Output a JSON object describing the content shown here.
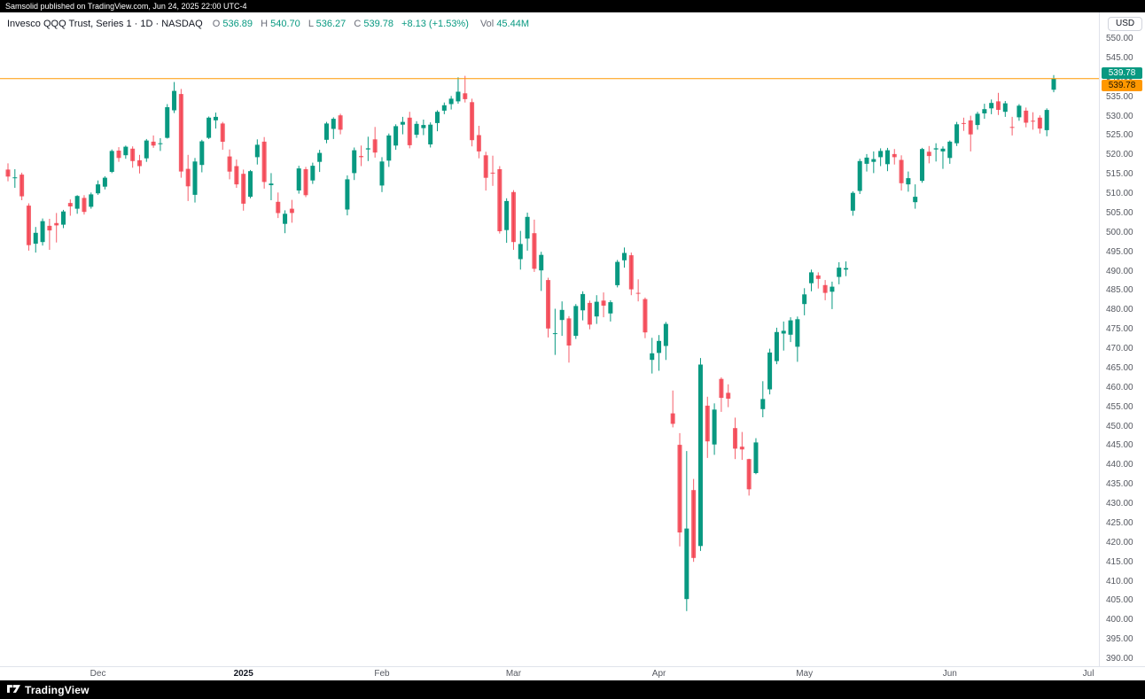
{
  "topbar": {
    "text": "Samsolid published on TradingView.com, Jun 24, 2025 22:00 UTC-4"
  },
  "legend": {
    "title": "Invesco QQQ Trust, Series 1 · 1D · NASDAQ",
    "ohlc": [
      {
        "label": "O",
        "value": "536.89"
      },
      {
        "label": "H",
        "value": "540.70"
      },
      {
        "label": "L",
        "value": "536.27"
      },
      {
        "label": "C",
        "value": "539.78"
      }
    ],
    "change": "+8.13 (+1.53%)",
    "vol_label": "Vol",
    "vol_value": "45.44M"
  },
  "price_scale": {
    "currency_button": "USD",
    "last_price_label": "539.78",
    "price_line_label": "539.78"
  },
  "footer": {
    "brand": "TradingView"
  },
  "colors": {
    "up": "#089981",
    "down": "#f23645",
    "price_line": "#ff9800",
    "last_badge": "#089981",
    "line_badge": "#ff9800",
    "axis_text": "#555860",
    "background": "#ffffff"
  },
  "chart_data": {
    "type": "candlestick",
    "title": "Invesco QQQ Trust, Series 1",
    "symbol": "QQQ",
    "exchange": "NASDAQ",
    "interval": "1D",
    "currency": "USD",
    "last_bar": {
      "open": 536.89,
      "high": 540.7,
      "low": 536.27,
      "close": 539.78,
      "change": 8.13,
      "change_pct": 1.53,
      "volume": "45.44M"
    },
    "price_line": 539.78,
    "y_axis": {
      "min": 390,
      "max": 550,
      "step": 5,
      "decimals": 2
    },
    "x_labels": [
      {
        "text": "Dec",
        "index": 13,
        "bold": false
      },
      {
        "text": "2025",
        "index": 34,
        "bold": true
      },
      {
        "text": "Feb",
        "index": 54,
        "bold": false
      },
      {
        "text": "Mar",
        "index": 73,
        "bold": false
      },
      {
        "text": "Apr",
        "index": 94,
        "bold": false
      },
      {
        "text": "May",
        "index": 115,
        "bold": false
      },
      {
        "text": "Jun",
        "index": 136,
        "bold": false
      },
      {
        "text": "Jul",
        "index": 156,
        "bold": false
      }
    ],
    "candles": [
      [
        "2024-11-12",
        516.3,
        517.9,
        513.3,
        514.5
      ],
      [
        "2024-11-13",
        514.2,
        516.4,
        511.6,
        514.3
      ],
      [
        "2024-11-14",
        515.0,
        515.5,
        508.4,
        509.4
      ],
      [
        "2024-11-15",
        507.0,
        507.6,
        495.4,
        496.8
      ],
      [
        "2024-11-18",
        497.2,
        501.5,
        494.9,
        500.0
      ],
      [
        "2024-11-19",
        497.6,
        503.7,
        496.7,
        503.0
      ],
      [
        "2024-11-20",
        501.8,
        503.6,
        495.6,
        500.6
      ],
      [
        "2024-11-21",
        502.5,
        505.1,
        497.5,
        501.9
      ],
      [
        "2024-11-22",
        502.1,
        505.9,
        501.2,
        505.5
      ],
      [
        "2024-11-25",
        507.7,
        508.6,
        504.4,
        506.8
      ],
      [
        "2024-11-26",
        506.2,
        509.7,
        504.9,
        509.5
      ],
      [
        "2024-11-27",
        509.0,
        509.7,
        504.7,
        505.4
      ],
      [
        "2024-11-29",
        506.7,
        510.4,
        506.2,
        509.9
      ],
      [
        "2024-12-02",
        510.2,
        513.5,
        509.8,
        512.5
      ],
      [
        "2024-12-03",
        511.9,
        514.6,
        511.2,
        514.2
      ],
      [
        "2024-12-04",
        515.7,
        521.5,
        515.4,
        521.1
      ],
      [
        "2024-12-05",
        521.2,
        522.1,
        518.3,
        519.3
      ],
      [
        "2024-12-06",
        520.0,
        522.5,
        519.1,
        522.2
      ],
      [
        "2024-12-09",
        521.7,
        522.3,
        516.8,
        518.5
      ],
      [
        "2024-12-10",
        518.7,
        520.1,
        515.3,
        517.2
      ],
      [
        "2024-12-11",
        519.2,
        524.2,
        518.3,
        523.8
      ],
      [
        "2024-12-12",
        523.5,
        525.1,
        521.9,
        522.5
      ],
      [
        "2024-12-13",
        523.0,
        524.4,
        521.1,
        523.1
      ],
      [
        "2024-12-16",
        524.5,
        533.2,
        524.3,
        532.4
      ],
      [
        "2024-12-17",
        531.6,
        538.9,
        530.9,
        536.6
      ],
      [
        "2024-12-18",
        535.8,
        537.1,
        514.2,
        515.8
      ],
      [
        "2024-12-19",
        516.5,
        520.1,
        508.2,
        512.0
      ],
      [
        "2024-12-20",
        509.8,
        519.3,
        507.8,
        518.4
      ],
      [
        "2024-12-23",
        517.5,
        524.0,
        515.6,
        523.6
      ],
      [
        "2024-12-24",
        524.5,
        530.0,
        524.2,
        529.7
      ],
      [
        "2024-12-26",
        529.0,
        531.0,
        526.9,
        529.9
      ],
      [
        "2024-12-27",
        528.2,
        528.6,
        521.4,
        523.5
      ],
      [
        "2024-12-30",
        519.7,
        521.5,
        513.8,
        515.8
      ],
      [
        "2024-12-31",
        517.2,
        518.9,
        511.6,
        512.5
      ],
      [
        "2025-01-02",
        515.2,
        516.3,
        505.7,
        507.5
      ],
      [
        "2025-01-03",
        509.3,
        516.2,
        508.9,
        515.9
      ],
      [
        "2025-01-06",
        519.5,
        524.1,
        517.6,
        522.7
      ],
      [
        "2025-01-07",
        523.5,
        524.7,
        511.4,
        513.1
      ],
      [
        "2025-01-08",
        512.3,
        515.4,
        508.4,
        512.7
      ],
      [
        "2025-01-10",
        508.0,
        510.4,
        503.8,
        505.1
      ],
      [
        "2025-01-13",
        502.3,
        505.8,
        499.9,
        504.9
      ],
      [
        "2025-01-14",
        506.2,
        508.5,
        502.6,
        505.1
      ],
      [
        "2025-01-15",
        510.9,
        517.3,
        510.1,
        516.6
      ],
      [
        "2025-01-16",
        516.4,
        517.0,
        509.2,
        509.7
      ],
      [
        "2025-01-17",
        513.5,
        518.1,
        512.6,
        517.3
      ],
      [
        "2025-01-21",
        518.3,
        521.4,
        515.7,
        520.6
      ],
      [
        "2025-01-22",
        524.0,
        528.6,
        523.1,
        528.2
      ],
      [
        "2025-01-23",
        526.8,
        529.8,
        524.2,
        529.4
      ],
      [
        "2025-01-24",
        530.3,
        530.7,
        525.4,
        526.6
      ],
      [
        "2025-01-27",
        506.0,
        514.8,
        504.5,
        513.8
      ],
      [
        "2025-01-28",
        515.4,
        522.0,
        513.6,
        521.3
      ],
      [
        "2025-01-29",
        519.8,
        522.5,
        517.2,
        519.5
      ],
      [
        "2025-01-30",
        521.5,
        524.8,
        518.5,
        521.8
      ],
      [
        "2025-01-31",
        524.1,
        527.3,
        519.4,
        520.7
      ],
      [
        "2025-02-03",
        512.2,
        519.5,
        510.5,
        518.4
      ],
      [
        "2025-02-04",
        518.6,
        525.6,
        517.0,
        525.1
      ],
      [
        "2025-02-05",
        522.5,
        528.0,
        521.4,
        527.5
      ],
      [
        "2025-02-06",
        527.9,
        529.9,
        525.4,
        528.6
      ],
      [
        "2025-02-07",
        529.7,
        531.2,
        521.8,
        522.6
      ],
      [
        "2025-02-10",
        525.3,
        528.8,
        524.5,
        528.1
      ],
      [
        "2025-02-11",
        527.0,
        529.2,
        525.2,
        527.8
      ],
      [
        "2025-02-12",
        522.8,
        528.5,
        522.0,
        527.9
      ],
      [
        "2025-02-13",
        528.3,
        531.6,
        526.2,
        531.2
      ],
      [
        "2025-02-14",
        531.5,
        533.6,
        530.6,
        532.9
      ],
      [
        "2025-02-18",
        533.2,
        535.3,
        531.8,
        534.6
      ],
      [
        "2025-02-19",
        533.9,
        540.1,
        533.3,
        536.4
      ],
      [
        "2025-02-20",
        536.0,
        540.5,
        533.6,
        534.5
      ],
      [
        "2025-02-21",
        533.7,
        534.6,
        522.3,
        523.9
      ],
      [
        "2025-02-24",
        525.2,
        527.6,
        519.2,
        521.0
      ],
      [
        "2025-02-25",
        520.0,
        520.9,
        510.9,
        514.2
      ],
      [
        "2025-02-26",
        515.5,
        519.9,
        512.1,
        515.4
      ],
      [
        "2025-02-27",
        516.4,
        517.2,
        499.8,
        500.4
      ],
      [
        "2025-02-28",
        500.7,
        508.9,
        497.4,
        508.2
      ],
      [
        "2025-03-03",
        510.5,
        511.0,
        495.6,
        497.6
      ],
      [
        "2025-03-04",
        493.2,
        500.5,
        490.5,
        497.1
      ],
      [
        "2025-03-05",
        498.5,
        505.2,
        495.4,
        504.1
      ],
      [
        "2025-03-06",
        499.9,
        503.4,
        489.9,
        490.7
      ],
      [
        "2025-03-07",
        490.3,
        495.1,
        485.0,
        494.3
      ],
      [
        "2025-03-10",
        487.8,
        488.4,
        473.0,
        475.3
      ],
      [
        "2025-03-11",
        473.9,
        480.4,
        468.5,
        474.1
      ],
      [
        "2025-03-12",
        477.5,
        482.3,
        473.4,
        480.1
      ],
      [
        "2025-03-13",
        477.9,
        478.5,
        466.5,
        470.9
      ],
      [
        "2025-03-14",
        473.4,
        481.6,
        472.6,
        481.1
      ],
      [
        "2025-03-17",
        480.0,
        484.9,
        477.4,
        484.2
      ],
      [
        "2025-03-18",
        481.9,
        482.5,
        475.1,
        476.3
      ],
      [
        "2025-03-19",
        478.4,
        483.9,
        476.5,
        482.2
      ],
      [
        "2025-03-20",
        482.5,
        484.6,
        478.2,
        481.2
      ],
      [
        "2025-03-21",
        479.2,
        482.6,
        477.1,
        482.1
      ],
      [
        "2025-03-24",
        486.5,
        493.0,
        485.9,
        492.5
      ],
      [
        "2025-03-25",
        492.9,
        496.2,
        491.0,
        494.8
      ],
      [
        "2025-03-26",
        494.2,
        494.9,
        483.9,
        485.4
      ],
      [
        "2025-03-27",
        484.5,
        488.0,
        482.3,
        484.4
      ],
      [
        "2025-03-28",
        482.9,
        483.3,
        472.8,
        474.3
      ],
      [
        "2025-03-31",
        467.2,
        472.9,
        463.7,
        468.9
      ],
      [
        "2025-04-01",
        469.0,
        473.6,
        464.4,
        472.1
      ],
      [
        "2025-04-02",
        470.8,
        477.0,
        467.2,
        476.5
      ],
      [
        "2025-04-03",
        453.4,
        459.3,
        449.8,
        450.7
      ],
      [
        "2025-04-04",
        445.3,
        448.3,
        419.1,
        422.7
      ],
      [
        "2025-04-07",
        405.5,
        443.7,
        402.4,
        423.7
      ],
      [
        "2025-04-08",
        433.6,
        436.5,
        415.1,
        416.1
      ],
      [
        "2025-04-09",
        419.2,
        467.7,
        417.9,
        466.0
      ],
      [
        "2025-04-10",
        455.4,
        457.7,
        441.9,
        446.2
      ],
      [
        "2025-04-11",
        445.4,
        456.0,
        442.7,
        454.4
      ],
      [
        "2025-04-14",
        462.3,
        462.7,
        453.8,
        457.4
      ],
      [
        "2025-04-15",
        458.7,
        460.9,
        455.0,
        457.2
      ],
      [
        "2025-04-16",
        449.6,
        452.3,
        441.6,
        444.3
      ],
      [
        "2025-04-17",
        444.8,
        448.6,
        441.4,
        444.1
      ],
      [
        "2025-04-21",
        441.6,
        441.7,
        432.2,
        433.8
      ],
      [
        "2025-04-22",
        438.0,
        447.0,
        437.7,
        445.9
      ],
      [
        "2025-04-23",
        454.5,
        461.7,
        452.4,
        457.1
      ],
      [
        "2025-04-24",
        459.6,
        470.1,
        458.3,
        469.1
      ],
      [
        "2025-04-25",
        466.9,
        475.5,
        466.1,
        474.4
      ],
      [
        "2025-04-28",
        474.0,
        477.1,
        469.6,
        474.7
      ],
      [
        "2025-04-29",
        473.7,
        478.2,
        471.8,
        477.4
      ],
      [
        "2025-04-30",
        470.6,
        478.4,
        466.7,
        477.7
      ],
      [
        "2025-05-01",
        481.6,
        485.7,
        478.7,
        484.1
      ],
      [
        "2025-05-02",
        487.0,
        490.5,
        484.9,
        489.8
      ],
      [
        "2025-05-05",
        489.0,
        489.8,
        485.6,
        488.1
      ],
      [
        "2025-05-06",
        486.5,
        487.8,
        482.6,
        484.5
      ],
      [
        "2025-05-07",
        484.8,
        487.4,
        480.3,
        486.1
      ],
      [
        "2025-05-08",
        488.6,
        492.4,
        486.7,
        491.0
      ],
      [
        "2025-05-09",
        490.5,
        492.6,
        488.8,
        490.9
      ],
      [
        "2025-05-12",
        505.7,
        510.7,
        504.4,
        510.3
      ],
      [
        "2025-05-13",
        510.8,
        519.1,
        510.0,
        518.5
      ],
      [
        "2025-05-14",
        517.8,
        520.3,
        515.8,
        519.4
      ],
      [
        "2025-05-15",
        518.3,
        521.0,
        515.4,
        519.0
      ],
      [
        "2025-05-16",
        519.5,
        521.8,
        517.2,
        521.1
      ],
      [
        "2025-05-19",
        517.7,
        521.9,
        515.9,
        521.3
      ],
      [
        "2025-05-20",
        520.3,
        521.6,
        517.6,
        519.5
      ],
      [
        "2025-05-21",
        518.8,
        520.0,
        510.9,
        512.8
      ],
      [
        "2025-05-22",
        512.5,
        515.8,
        510.6,
        514.1
      ],
      [
        "2025-05-23",
        507.9,
        512.5,
        506.2,
        509.3
      ],
      [
        "2025-05-27",
        513.4,
        521.9,
        512.9,
        521.6
      ],
      [
        "2025-05-28",
        520.9,
        522.4,
        517.9,
        519.8
      ],
      [
        "2025-05-29",
        521.5,
        523.1,
        518.4,
        521.8
      ],
      [
        "2025-05-30",
        521.0,
        522.3,
        516.5,
        521.7
      ],
      [
        "2025-06-02",
        519.3,
        523.8,
        517.8,
        523.5
      ],
      [
        "2025-06-03",
        523.1,
        528.6,
        522.4,
        528.0
      ],
      [
        "2025-06-04",
        528.3,
        529.7,
        526.3,
        528.1
      ],
      [
        "2025-06-05",
        529.0,
        530.2,
        521.0,
        525.4
      ],
      [
        "2025-06-06",
        527.8,
        531.2,
        526.6,
        530.7
      ],
      [
        "2025-06-09",
        530.8,
        533.3,
        529.4,
        531.9
      ],
      [
        "2025-06-10",
        532.1,
        534.4,
        530.6,
        533.5
      ],
      [
        "2025-06-11",
        533.9,
        536.1,
        530.4,
        531.7
      ],
      [
        "2025-06-12",
        531.2,
        534.0,
        529.9,
        533.4
      ],
      [
        "2025-06-13",
        527.3,
        529.9,
        525.1,
        527.1
      ],
      [
        "2025-06-16",
        529.8,
        533.2,
        528.9,
        532.8
      ],
      [
        "2025-06-17",
        531.5,
        532.3,
        527.2,
        528.4
      ],
      [
        "2025-06-18",
        528.9,
        531.1,
        526.6,
        528.8
      ],
      [
        "2025-06-20",
        529.7,
        530.3,
        525.6,
        526.9
      ],
      [
        "2025-06-23",
        526.5,
        532.1,
        524.9,
        531.7
      ],
      [
        "2025-06-24",
        536.89,
        540.7,
        536.27,
        539.78
      ]
    ]
  }
}
